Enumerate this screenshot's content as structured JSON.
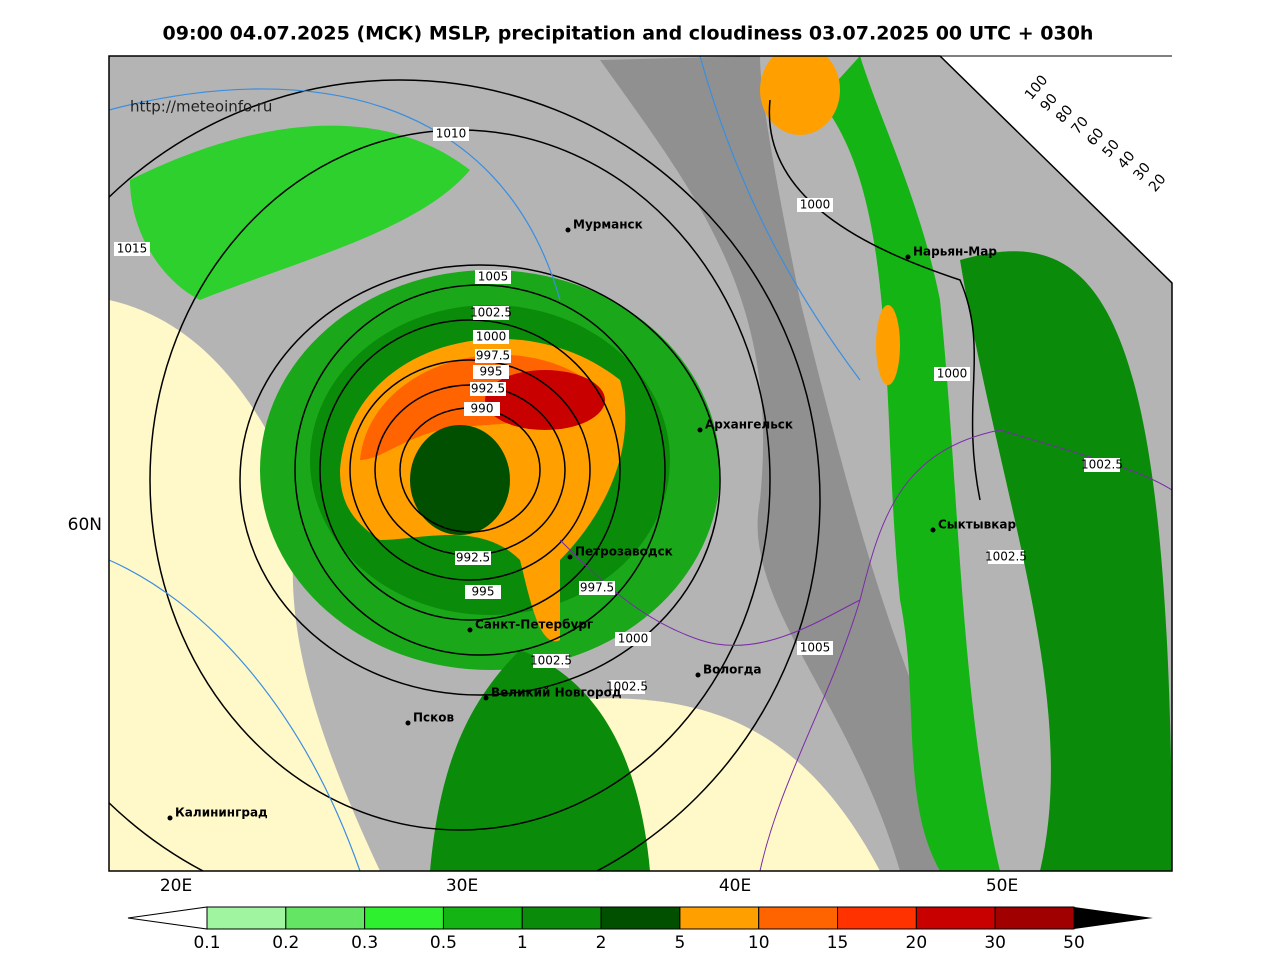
{
  "title": "09:00 04.07.2025 (МСК) MSLP, precipitation and cloudiness 03.07.2025 00 UTC + 030h",
  "url": "http://meteoinfo.ru",
  "axes": {
    "x_labels": [
      "20E",
      "30E",
      "40E",
      "50E"
    ],
    "y_labels": [
      "60N"
    ]
  },
  "cities": [
    "Мурманск",
    "Нарьян-Мар",
    "Архангельск",
    "Сыктывкар",
    "Петрозаводск",
    "Санкт-Петербург",
    "Вологда",
    "Великий Новгород",
    "Псков",
    "Калининград"
  ],
  "isobar_labels": [
    1010,
    1015,
    1005,
    1002.5,
    1000,
    997.5,
    995,
    992.5,
    990,
    1000,
    1000,
    1002.5,
    1002.5,
    992.5,
    995,
    997.5,
    1000,
    1002.5,
    1002.5,
    1005
  ],
  "cloudiness_scale": {
    "labels": [
      100,
      90,
      80,
      70,
      60,
      50,
      40,
      30,
      20
    ]
  },
  "precip_scale": {
    "values": [
      0.1,
      0.2,
      0.3,
      0.5,
      1,
      2,
      5,
      10,
      15,
      20,
      30,
      50
    ],
    "colors": [
      "#a0f5a0",
      "#64e664",
      "#2ef02e",
      "#14b414",
      "#0a8c0a",
      "#005000",
      "#ffa000",
      "#ff6400",
      "#ff3200",
      "#c80000",
      "#a00000"
    ]
  }
}
